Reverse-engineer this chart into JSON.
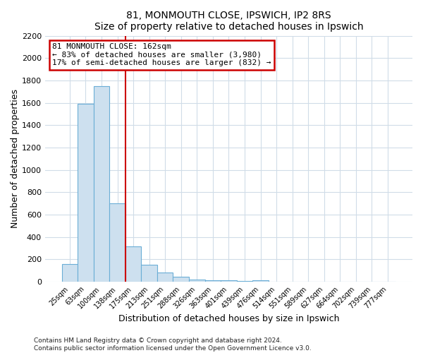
{
  "title": "81, MONMOUTH CLOSE, IPSWICH, IP2 8RS",
  "subtitle": "Size of property relative to detached houses in Ipswich",
  "xlabel": "Distribution of detached houses by size in Ipswich",
  "ylabel": "Number of detached properties",
  "bar_labels": [
    "25sqm",
    "63sqm",
    "100sqm",
    "138sqm",
    "175sqm",
    "213sqm",
    "251sqm",
    "288sqm",
    "326sqm",
    "363sqm",
    "401sqm",
    "439sqm",
    "476sqm",
    "514sqm",
    "551sqm",
    "589sqm",
    "627sqm",
    "664sqm",
    "702sqm",
    "739sqm",
    "777sqm"
  ],
  "bar_values": [
    160,
    1590,
    1750,
    700,
    315,
    155,
    80,
    45,
    20,
    15,
    10,
    5,
    15,
    0,
    0,
    0,
    0,
    0,
    0,
    0,
    0
  ],
  "bar_color": "#cde0ef",
  "bar_edge_color": "#6baed6",
  "red_line_x": 3.5,
  "annotation_title": "81 MONMOUTH CLOSE: 162sqm",
  "annotation_line1": "← 83% of detached houses are smaller (3,980)",
  "annotation_line2": "17% of semi-detached houses are larger (832) →",
  "annotation_box_color": "#ffffff",
  "annotation_box_edge": "#cc0000",
  "red_line_color": "#cc0000",
  "ylim": [
    0,
    2200
  ],
  "yticks": [
    0,
    200,
    400,
    600,
    800,
    1000,
    1200,
    1400,
    1600,
    1800,
    2000,
    2200
  ],
  "footer1": "Contains HM Land Registry data © Crown copyright and database right 2024.",
  "footer2": "Contains public sector information licensed under the Open Government Licence v3.0.",
  "bg_color": "#ffffff",
  "plot_bg_color": "#ffffff",
  "grid_color": "#d0dce8"
}
